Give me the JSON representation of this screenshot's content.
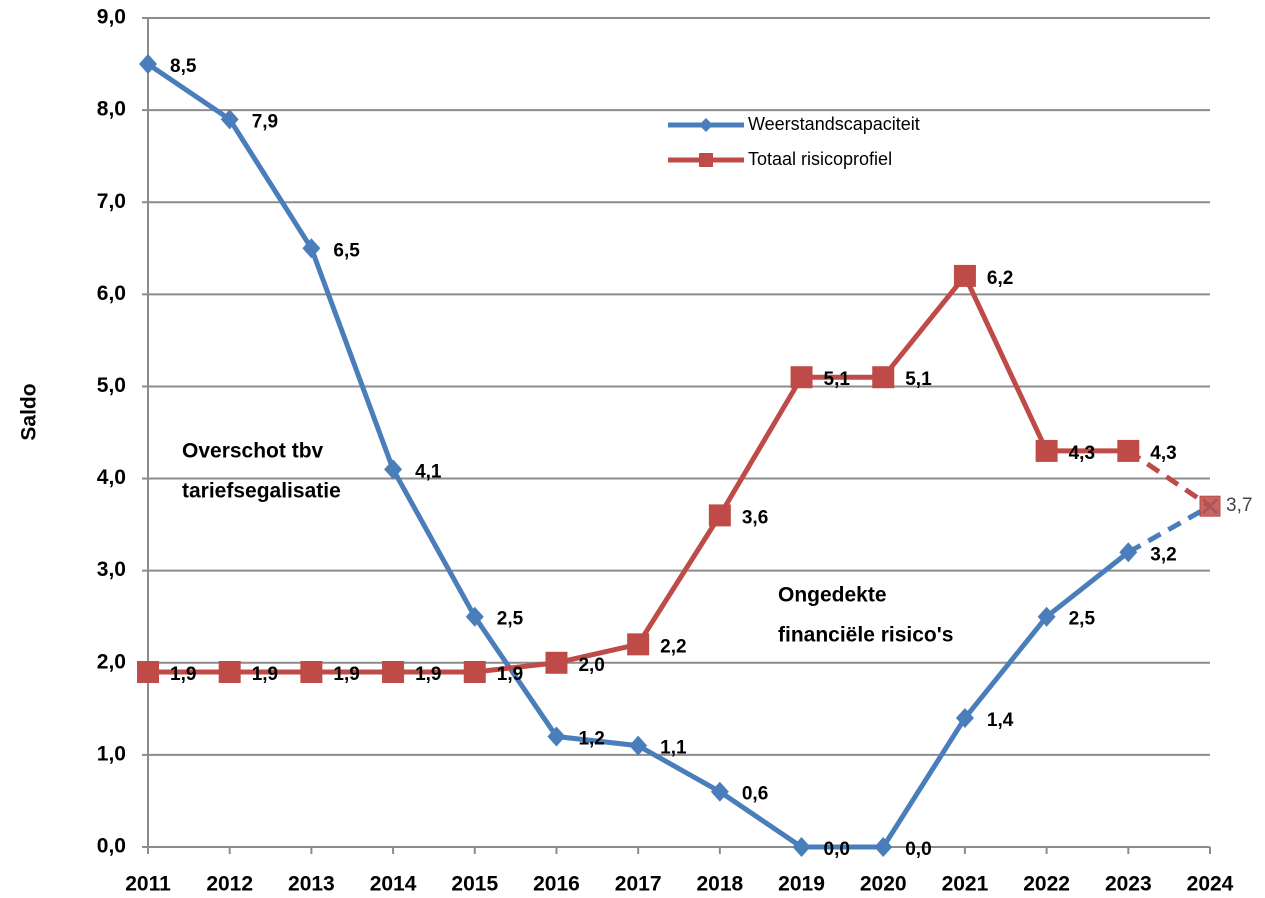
{
  "chart_data": {
    "type": "line",
    "y_label": "Saldo",
    "categories": [
      "2011",
      "2012",
      "2013",
      "2014",
      "2015",
      "2016",
      "2017",
      "2018",
      "2019",
      "2020",
      "2021",
      "2022",
      "2023",
      "2024"
    ],
    "series": [
      {
        "name": "Weerstandscapaciteit",
        "color": "#4a7ebb",
        "marker": "diamond",
        "values": [
          8.5,
          7.9,
          6.5,
          4.1,
          2.5,
          1.2,
          1.1,
          0.6,
          0.0,
          0.0,
          1.4,
          2.5,
          3.2,
          3.7
        ],
        "value_labels": [
          "8,5",
          "7,9",
          "6,5",
          "4,1",
          "2,5",
          "1,2",
          "1,1",
          "0,6",
          "0,0",
          "0,0",
          "1,4",
          "2,5",
          "3,2",
          "3,7"
        ]
      },
      {
        "name": "Totaal risicoprofiel",
        "color": "#be4b48",
        "marker": "square",
        "values": [
          1.9,
          1.9,
          1.9,
          1.9,
          1.9,
          2.0,
          2.2,
          3.6,
          5.1,
          5.1,
          6.2,
          4.3,
          4.3,
          3.7
        ],
        "value_labels": [
          "1,9",
          "1,9",
          "1,9",
          "1,9",
          "1,9",
          "2,0",
          "2,2",
          "3,6",
          "5,1",
          "5,1",
          "6,2",
          "4,3",
          "4,3",
          null
        ]
      }
    ],
    "ylim": [
      0,
      9
    ],
    "yticks": [
      {
        "value": 0,
        "label": "0,0"
      },
      {
        "value": 1,
        "label": "1,0"
      },
      {
        "value": 2,
        "label": "2,0"
      },
      {
        "value": 3,
        "label": "3,0"
      },
      {
        "value": 4,
        "label": "4,0"
      },
      {
        "value": 5,
        "label": "5,0"
      },
      {
        "value": 6,
        "label": "6,0"
      },
      {
        "value": 7,
        "label": "7,0"
      },
      {
        "value": 8,
        "label": "8,0"
      },
      {
        "value": 9,
        "label": "9,0"
      }
    ],
    "grid": true,
    "annotations": [
      "Overschot tbv",
      "tariefsegalisatie",
      "Ongedekte",
      "financiële risico's"
    ]
  }
}
